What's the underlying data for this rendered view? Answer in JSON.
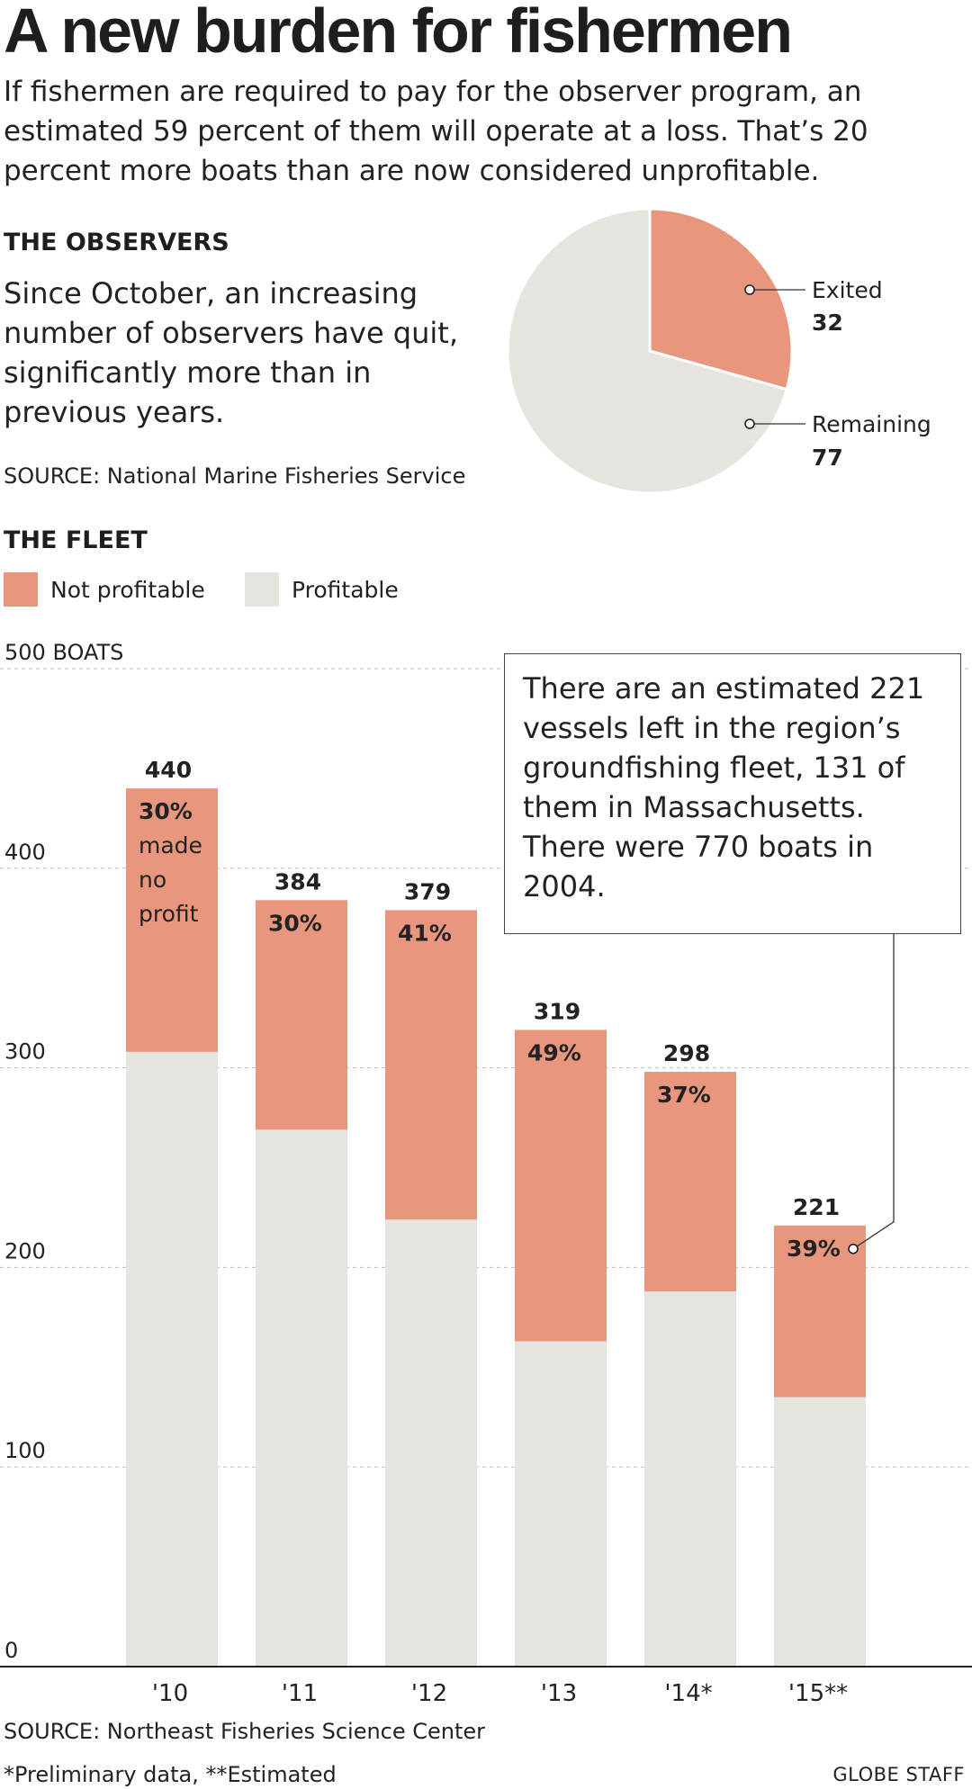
{
  "headline": "A new burden for fishermen",
  "intro": "If fishermen are required to pay for the observer program, an estimated 59 percent of them will operate at a loss. That’s 20 percent more boats than are now considered unprofitable.",
  "observers": {
    "heading": "THE OBSERVERS",
    "text": "Since October, an increasing number of observers have quit, significantly more than in previous years.",
    "source": "SOURCE: National Marine Fisheries Service"
  },
  "fleet": {
    "heading": "THE FLEET",
    "legend": [
      {
        "label": "Not profitable",
        "color": "#e9967e"
      },
      {
        "label": "Profitable",
        "color": "#e6e4df"
      }
    ],
    "callout": "There are an estimated 221 vessels left in the region’s groundfishing fleet, 131 of them in Massachusetts. There were 770 boats in 2004.",
    "source": "SOURCE: Northeast Fisheries Science Center",
    "footnote": "*Preliminary data, **Estimated"
  },
  "credit": "GLOBE STAFF",
  "chart_data": [
    {
      "type": "pie",
      "slices": [
        {
          "label": "Exited",
          "value": 32,
          "color": "#e9967e"
        },
        {
          "label": "Remaining",
          "value": 77,
          "color": "#e6e4df"
        }
      ]
    },
    {
      "type": "bar",
      "stacked": true,
      "categories": [
        "'10",
        "'11",
        "'12",
        "'13",
        "'14*",
        "'15**"
      ],
      "totals": [
        440,
        384,
        379,
        319,
        298,
        221
      ],
      "series": [
        {
          "name": "Profitable",
          "values": [
            308,
            269,
            224,
            163,
            188,
            135
          ],
          "color": "#e6e4df"
        },
        {
          "name": "Not profitable",
          "values": [
            132,
            115,
            155,
            156,
            110,
            86
          ],
          "color": "#e9967e"
        }
      ],
      "pct_labels": [
        "30%",
        "30%",
        "41%",
        "49%",
        "37%",
        "39%"
      ],
      "first_bar_note": [
        "made",
        "no",
        "profit"
      ],
      "ylim": [
        0,
        500
      ],
      "yticks": [
        0,
        100,
        200,
        300,
        400,
        500
      ],
      "ytick_labels": [
        "0",
        "100",
        "200",
        "300",
        "400",
        "500 BOATS"
      ],
      "grid": true
    }
  ]
}
